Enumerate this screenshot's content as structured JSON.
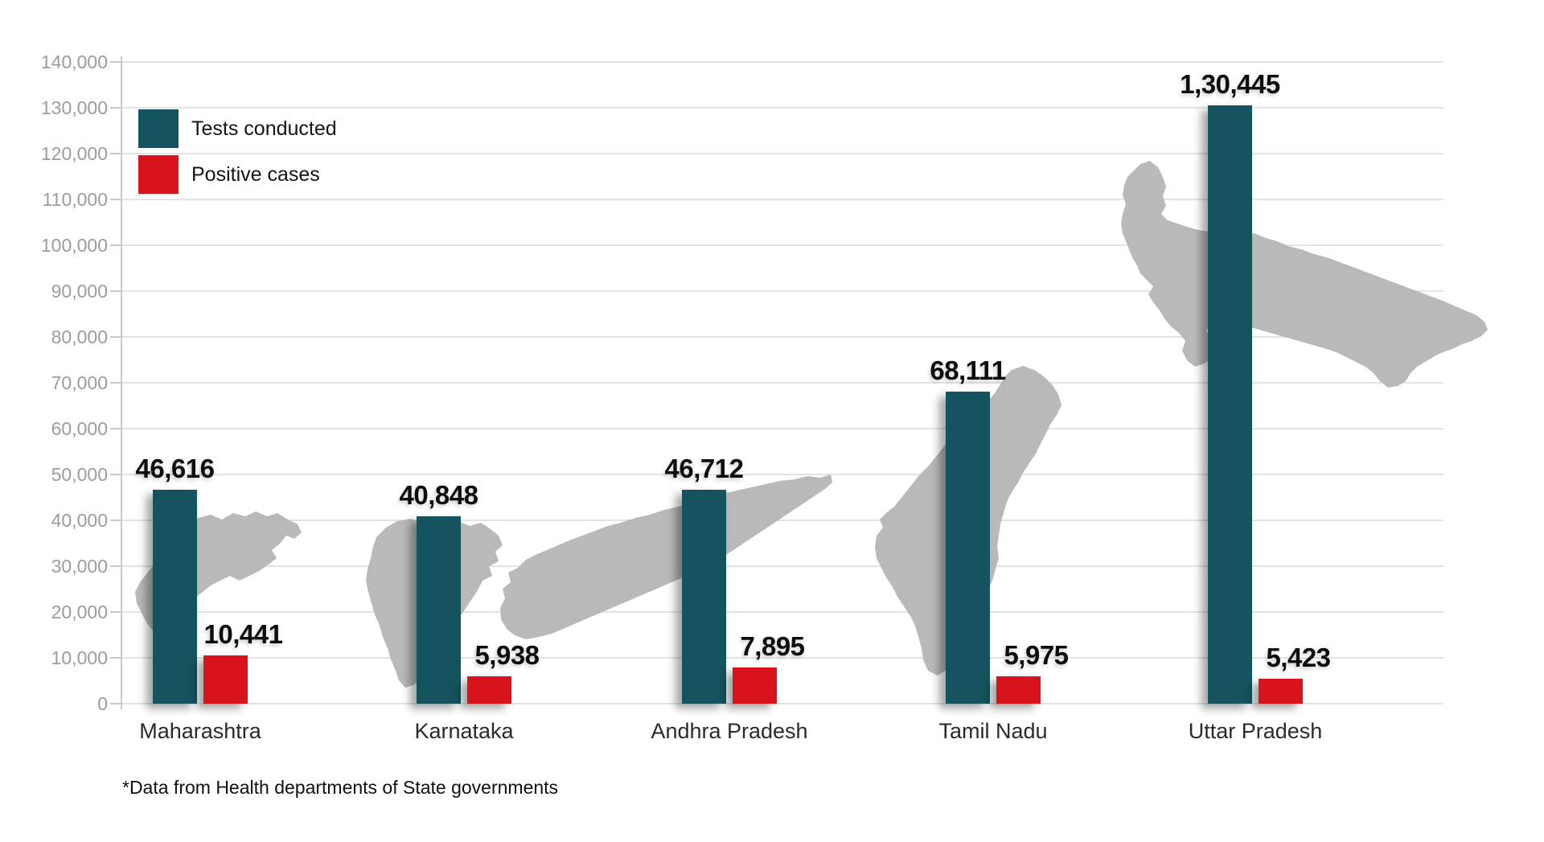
{
  "chart_data": {
    "type": "bar",
    "title": "",
    "categories": [
      "Maharashtra",
      "Karnataka",
      "Andhra Pradesh",
      "Tamil Nadu",
      "Uttar Pradesh"
    ],
    "series": [
      {
        "name": "Tests conducted",
        "color": "#15545E",
        "values": [
          46616,
          40848,
          46712,
          68111,
          130445
        ],
        "value_labels": [
          "46,616",
          "40,848",
          "46,712",
          "68,111",
          "1,30,445"
        ]
      },
      {
        "name": "Positive cases",
        "color": "#D8131B",
        "values": [
          10441,
          5938,
          7895,
          5975,
          5423
        ],
        "value_labels": [
          "10,441",
          "5,938",
          "7,895",
          "5,975",
          "5,423"
        ]
      }
    ],
    "ylim": [
      0,
      140000
    ],
    "ytick_interval": 10000,
    "ytick_labels": [
      "0",
      "10,000",
      "20,000",
      "30,000",
      "40,000",
      "50,000",
      "60,000",
      "70,000",
      "80,000",
      "90,000",
      "100,000",
      "110,000",
      "120,000",
      "130,000",
      "140,000"
    ],
    "grid": true,
    "legend_position": "top-left",
    "xlabel": "",
    "ylabel": "",
    "footnote": "*Data from Health departments of State governments",
    "background_map_silhouettes": [
      "Maharashtra",
      "Karnataka",
      "Andhra Pradesh",
      "Tamil Nadu",
      "Uttar Pradesh"
    ]
  },
  "colors": {
    "tests_bar": "#15545E",
    "positive_bar": "#D8131B",
    "map_silhouette": "#B9B9B9",
    "gridline": "#E4E4E4",
    "axis": "#C9C9C9",
    "ytick_text": "#9C9C9C",
    "xtick_text": "#2A2A2A",
    "value_text": "#0D0D0D"
  }
}
